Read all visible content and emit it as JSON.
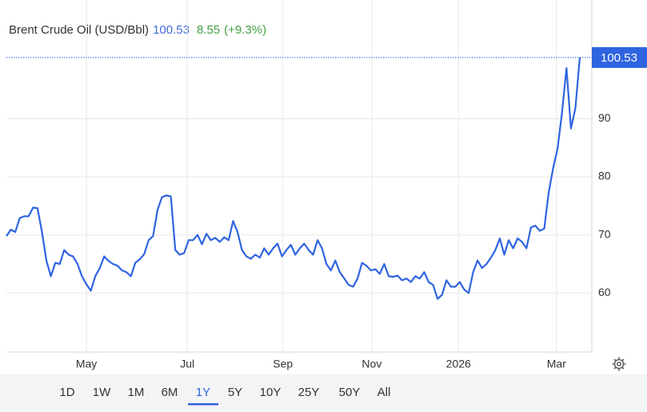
{
  "header": {
    "title": "Brent Crude Oil (USD/Bbl)",
    "change": 8.55,
    "change_label": "(+9.3%)"
  },
  "chart_data": {
    "type": "line",
    "series": [
      {
        "name": "Brent Crude Oil",
        "color": "#2f64e0",
        "values": [
          69.8,
          70.9,
          70.5,
          72.9,
          73.2,
          73.2,
          74.7,
          74.6,
          70.5,
          65.6,
          62.9,
          65.2,
          65.0,
          67.4,
          66.6,
          66.3,
          65.0,
          62.9,
          61.5,
          60.4,
          62.9,
          64.3,
          66.3,
          65.5,
          65.0,
          64.7,
          63.9,
          63.6,
          62.9,
          65.2,
          65.8,
          66.7,
          69.1,
          69.8,
          74.3,
          76.5,
          76.8,
          76.6,
          67.4,
          66.6,
          66.9,
          69.1,
          69.1,
          70.0,
          68.4,
          70.2,
          69.1,
          69.5,
          68.8,
          69.6,
          69.1,
          72.4,
          70.5,
          67.4,
          66.3,
          65.9,
          66.6,
          66.1,
          67.7,
          66.6,
          67.7,
          68.5,
          66.3,
          67.4,
          68.3,
          66.6,
          67.7,
          68.5,
          67.4,
          66.6,
          69.1,
          67.7,
          65.0,
          63.9,
          65.6,
          63.6,
          62.5,
          61.4,
          61.1,
          62.5,
          65.2,
          64.7,
          63.9,
          64.1,
          63.3,
          65.0,
          62.9,
          62.8,
          63.0,
          62.2,
          62.5,
          61.9,
          62.9,
          62.5,
          63.6,
          61.9,
          61.4,
          59.0,
          59.7,
          62.2,
          61.1,
          61.1,
          61.9,
          60.6,
          60.0,
          63.6,
          65.6,
          64.3,
          65.0,
          66.1,
          67.4,
          69.4,
          66.6,
          69.1,
          67.7,
          69.4,
          68.8,
          67.7,
          71.3,
          71.6,
          70.7,
          71.1,
          77.3,
          81.5,
          84.9,
          91.1,
          98.7,
          88.3,
          91.8,
          100.53
        ]
      }
    ],
    "xlim": [
      0,
      129
    ],
    "xticks": [
      {
        "value": 18,
        "label": "May"
      },
      {
        "value": 40.7,
        "label": "Jul"
      },
      {
        "value": 62.2,
        "label": "Sep"
      },
      {
        "value": 82.2,
        "label": "Nov"
      },
      {
        "value": 101.7,
        "label": "2026"
      },
      {
        "value": 123.75,
        "label": "Mar"
      }
    ],
    "ylim": [
      50,
      110
    ],
    "yticks": [
      60,
      70,
      80,
      90
    ],
    "grid": true
  },
  "ranges": [
    "1D",
    "1W",
    "1M",
    "6M",
    "1Y",
    "5Y",
    "10Y",
    "25Y",
    "50Y",
    "All"
  ],
  "selected_range": "1Y"
}
